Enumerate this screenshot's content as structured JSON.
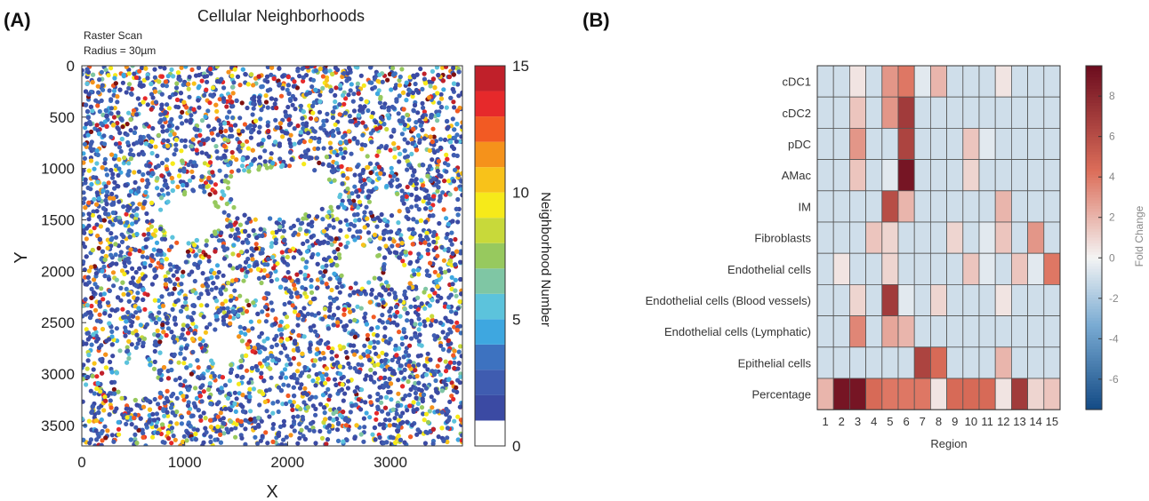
{
  "panels": {
    "a_label": "(A)",
    "b_label": "(B)"
  },
  "colors": {
    "neighborhood_palette": [
      "#ffffff",
      "#3b4aa3",
      "#3f5cb0",
      "#3d72c0",
      "#3ea7e0",
      "#5cc3dc",
      "#7fc6a4",
      "#97c95e",
      "#c8d93a",
      "#f6ea1a",
      "#f8c21a",
      "#f5921b",
      "#f25a23",
      "#e6292b",
      "#c0202a",
      "#7d1111"
    ],
    "heatmap_negative": "#134a85",
    "heatmap_zero": "#f4f4f4",
    "heatmap_positive": "#6b0c1e"
  },
  "chart_data": [
    {
      "type": "scatter",
      "title": "Cellular Neighborhoods",
      "subtitle_line1": "Raster Scan",
      "subtitle_line2": "Radius = 30µm",
      "xlabel": "X",
      "ylabel": "Y",
      "xlim": [
        0,
        3700
      ],
      "ylim": [
        0,
        3700
      ],
      "y_reversed": true,
      "xticks": [
        "0",
        "1000",
        "2000",
        "3000"
      ],
      "xtick_values": [
        0,
        1000,
        2000,
        3000
      ],
      "yticks": [
        "0",
        "500",
        "1000",
        "1500",
        "2000",
        "2500",
        "3000",
        "3500"
      ],
      "ytick_values": [
        0,
        500,
        1000,
        1500,
        2000,
        2500,
        3000,
        3500
      ],
      "colorbar": {
        "label": "Neighborhood Number",
        "ticks": [
          "0",
          "5",
          "10",
          "15"
        ],
        "tick_values": [
          0,
          5,
          10,
          15
        ],
        "range": [
          0,
          15
        ]
      },
      "point_count": 5200,
      "empty_regions": [
        {
          "cx": 1050,
          "cy": 1480,
          "rx": 300,
          "ry": 220
        },
        {
          "cx": 1950,
          "cy": 1230,
          "rx": 520,
          "ry": 240
        },
        {
          "cx": 2950,
          "cy": 1320,
          "rx": 140,
          "ry": 120
        },
        {
          "cx": 2700,
          "cy": 1940,
          "rx": 200,
          "ry": 180
        },
        {
          "cx": 1400,
          "cy": 2750,
          "rx": 170,
          "ry": 160
        },
        {
          "cx": 1650,
          "cy": 2180,
          "rx": 120,
          "ry": 110
        },
        {
          "cx": 530,
          "cy": 3050,
          "rx": 200,
          "ry": 180
        },
        {
          "cx": 3080,
          "cy": 2050,
          "rx": 130,
          "ry": 120
        }
      ]
    },
    {
      "type": "heatmap",
      "xlabel": "Region",
      "categories": [
        "1",
        "2",
        "3",
        "4",
        "5",
        "6",
        "7",
        "8",
        "9",
        "10",
        "11",
        "12",
        "13",
        "14",
        "15"
      ],
      "rows": [
        "cDC1",
        "cDC2",
        "pDC",
        "AMac",
        "IM",
        "Fibroblasts",
        "Endothelial cells",
        "Endothelial cells (Blood vessels)",
        "Endothelial cells (Lymphatic)",
        "Epithelial cells",
        "Percentage"
      ],
      "values": [
        [
          -1,
          -1,
          0.5,
          -1,
          3,
          4,
          -0.5,
          2,
          -1,
          -1,
          -1,
          0.5,
          -1,
          -1,
          -1
        ],
        [
          -1,
          -1,
          1.5,
          -1,
          3,
          7,
          -1,
          -1,
          -1,
          -1,
          -1,
          -1,
          -1,
          -1,
          -1
        ],
        [
          -1,
          -1,
          3,
          -1,
          -1,
          6.5,
          -1,
          -1,
          -1,
          1.5,
          -0.5,
          -1,
          -1,
          -1,
          -1
        ],
        [
          -1,
          -1,
          1.5,
          -1,
          -0.5,
          9,
          -1,
          -1,
          -1,
          1,
          -1,
          -1,
          -1,
          -1,
          -1
        ],
        [
          -1,
          -1,
          -1,
          -1,
          6,
          2,
          -1,
          -1,
          -1,
          -1,
          -1,
          2,
          -1,
          -1,
          -1
        ],
        [
          -1,
          -1,
          -1,
          1.5,
          1,
          -1,
          -1,
          -1,
          1,
          -1,
          -0.5,
          1.5,
          -1,
          3,
          -1
        ],
        [
          -1,
          0.5,
          -1,
          -1,
          1,
          -1,
          -1,
          -1,
          -1,
          1.5,
          -0.5,
          -1,
          1.5,
          -0.5,
          4
        ],
        [
          -1,
          -1,
          1,
          -1,
          7,
          -0.5,
          -1,
          1,
          -1,
          -1,
          -1,
          0.5,
          -1,
          -1,
          -1
        ],
        [
          -1,
          -1,
          3.5,
          -1,
          2.5,
          2,
          -1,
          -1,
          -1,
          -1,
          -1,
          -1,
          -1,
          -1,
          -1
        ],
        [
          -1,
          -1,
          -1,
          -1,
          -1,
          -1,
          6.5,
          4.5,
          -1,
          -1,
          -1,
          2,
          -1,
          -1,
          -1
        ],
        [
          2,
          9,
          9,
          4.5,
          4,
          4,
          4,
          0.5,
          4.5,
          4.5,
          4.5,
          0.5,
          7,
          1,
          1.5
        ]
      ],
      "colorbar": {
        "label": "Fold Change",
        "ticks": [
          "8",
          "6",
          "4",
          "2",
          "0",
          "-2",
          "-4",
          "-6"
        ],
        "tick_values": [
          8,
          6,
          4,
          2,
          0,
          -2,
          -4,
          -6
        ],
        "range": [
          -7.5,
          9.5
        ]
      }
    }
  ]
}
